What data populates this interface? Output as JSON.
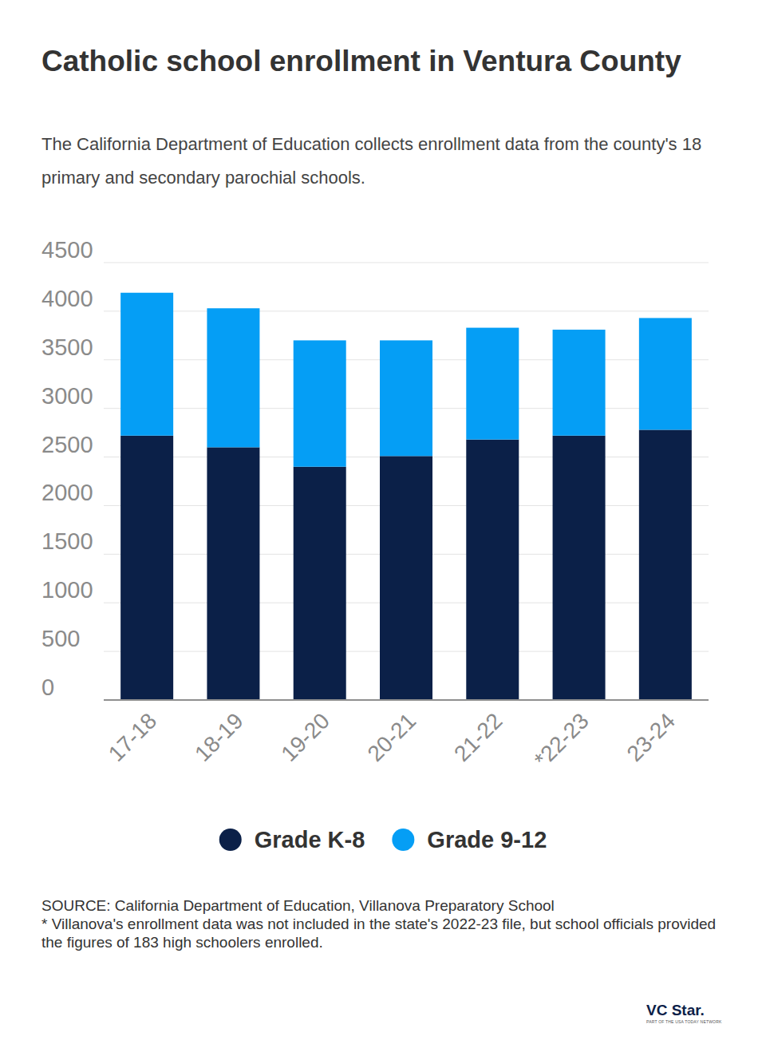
{
  "chart_data": {
    "type": "bar",
    "stacked": true,
    "grid": true,
    "title": "Catholic school enrollment in Ventura County",
    "subtitle": "The California Department of Education collects enrollment data from the county's 18 primary and secondary parochial schools.",
    "categories": [
      "17-18",
      "18-19",
      "19-20",
      "20-21",
      "21-22",
      "*22-23",
      "23-24"
    ],
    "series": [
      {
        "name": "Grade K-8",
        "color": "#0b2048",
        "values": [
          2720,
          2600,
          2400,
          2510,
          2680,
          2720,
          2780
        ]
      },
      {
        "name": "Grade 9-12",
        "color": "#059ef5",
        "values": [
          1470,
          1430,
          1300,
          1190,
          1150,
          1090,
          1150
        ]
      }
    ],
    "ylim": [
      0,
      4500
    ],
    "yticks": [
      0,
      500,
      1000,
      1500,
      2000,
      2500,
      3000,
      3500,
      4000,
      4500
    ],
    "legend": "bottom",
    "source": "SOURCE: California Department of Education, Villanova Preparatory School",
    "footnote": "* Villanova's enrollment data was not included in the state's 2022-23 file, but school officials provided the figures of 183 high schoolers enrolled.",
    "brand": "VC Star.",
    "brand_tagline": "PART OF THE USA TODAY NETWORK"
  }
}
